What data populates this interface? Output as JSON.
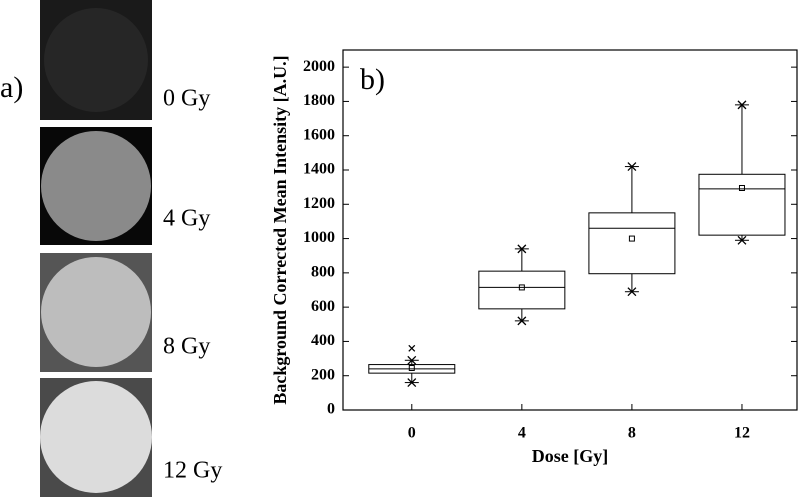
{
  "images": {
    "label": "a)",
    "doses": [
      "0 Gy",
      "4 Gy",
      "8 Gy",
      "12 Gy"
    ]
  },
  "chart_data": {
    "type": "box",
    "label": "b)",
    "y_label": "Background Corrected Mean Intensity [A.U.]",
    "x_label": "Dose [Gy]",
    "x": [
      0,
      4,
      8,
      12
    ],
    "xlim": [
      -2.5,
      14
    ],
    "xticks": [
      0,
      4,
      8,
      12
    ],
    "ylim": [
      0,
      2100
    ],
    "yticks": [
      0,
      200,
      400,
      600,
      800,
      1000,
      1200,
      1400,
      1600,
      1800,
      2000
    ],
    "whisker_low": [
      160,
      520,
      690,
      990
    ],
    "q1": [
      215,
      590,
      795,
      1020
    ],
    "median": [
      240,
      715,
      1060,
      1290
    ],
    "q3": [
      265,
      810,
      1150,
      1375
    ],
    "whisker_high": [
      290,
      940,
      1420,
      1780
    ],
    "mean": [
      245,
      715,
      1000,
      1295
    ],
    "outliers": [
      [
        360
      ],
      [],
      [],
      []
    ],
    "color": "#000000"
  }
}
